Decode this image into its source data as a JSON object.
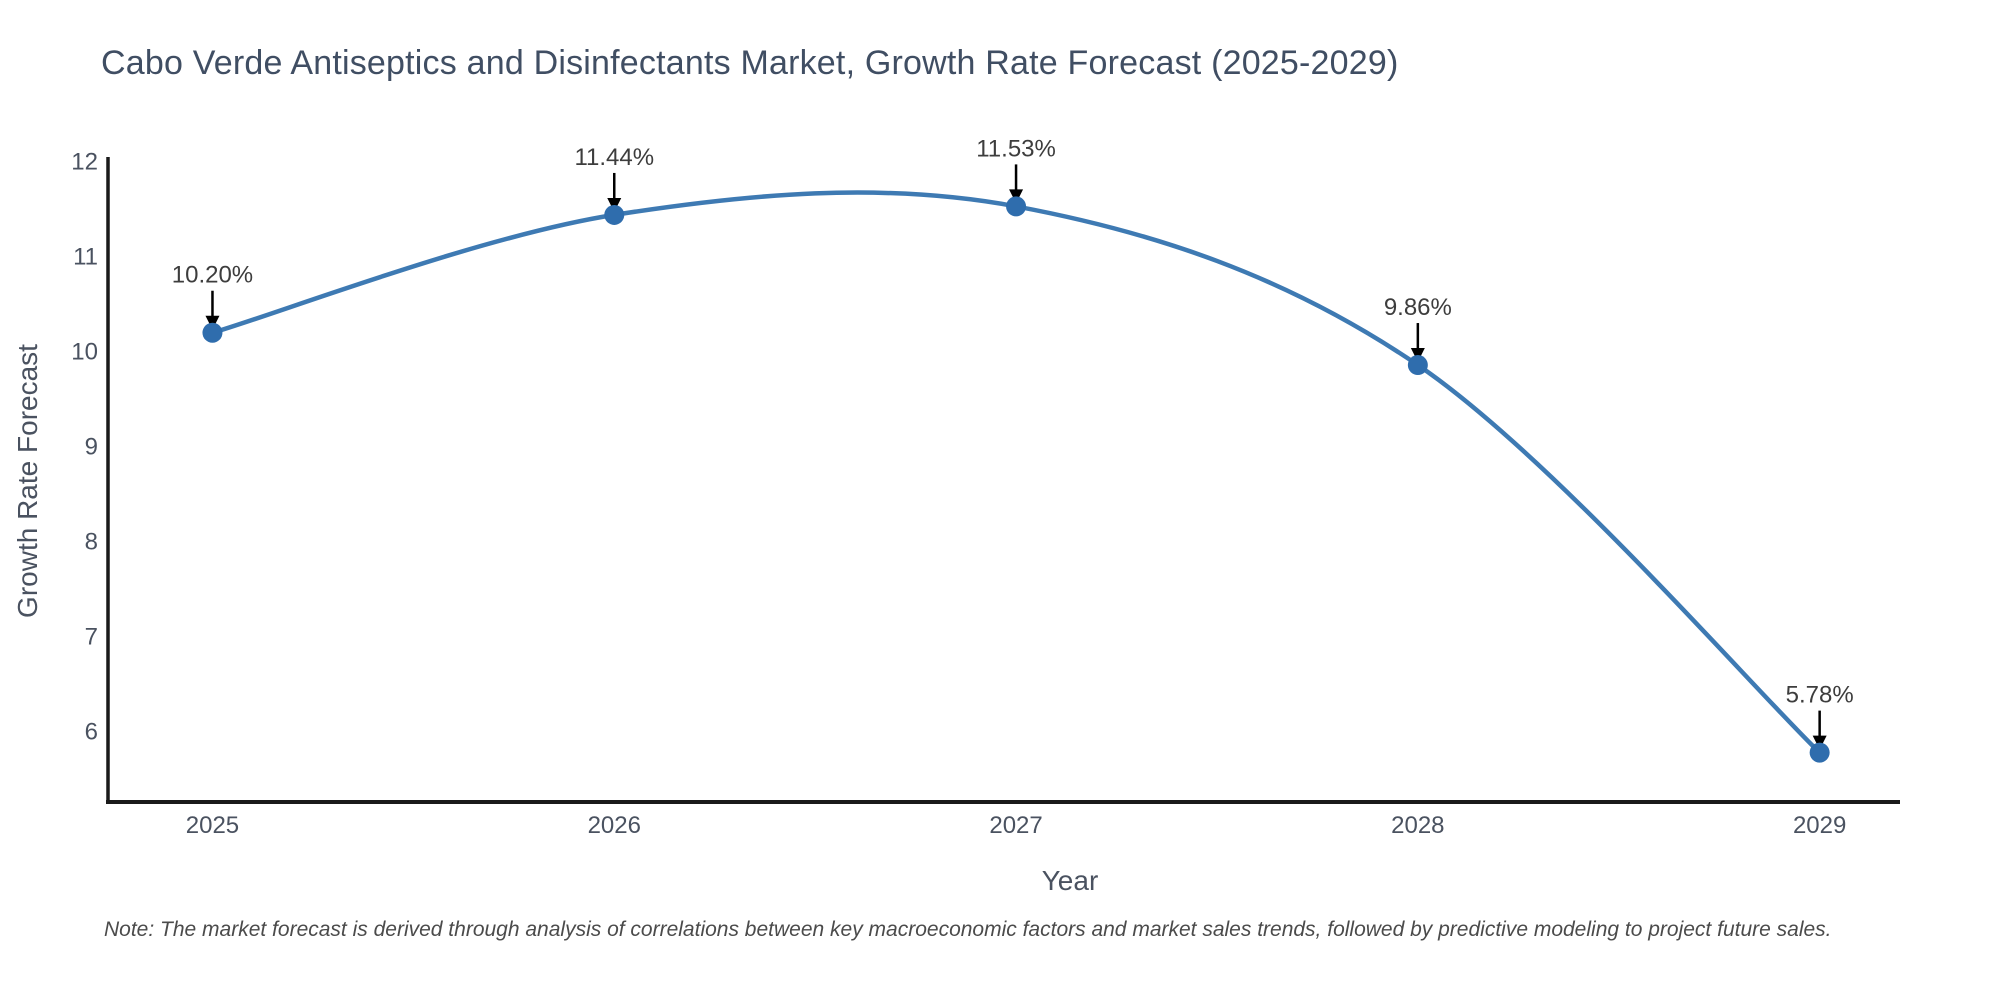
{
  "figure": {
    "title": "Cabo Verde Antiseptics and Disinfectants Market, Growth Rate Forecast (2025-2029)",
    "note": "Note: The market forecast is derived through analysis of correlations between key macroeconomic factors and market sales trends, followed by predictive modeling to project future sales."
  },
  "chart_data": {
    "type": "line",
    "title": "Cabo Verde Antiseptics and Disinfectants Market, Growth Rate Forecast (2025-2029)",
    "x": [
      2025,
      2026,
      2027,
      2028,
      2029
    ],
    "values": [
      10.2,
      11.44,
      11.53,
      9.86,
      5.78
    ],
    "point_labels": [
      "10.20%",
      "11.44%",
      "11.53%",
      "9.86%",
      "5.78%"
    ],
    "xlabel": "Year",
    "ylabel": "Growth Rate Forecast",
    "yticks": [
      6,
      7,
      8,
      9,
      10,
      11,
      12
    ],
    "xticks": [
      "2025",
      "2026",
      "2027",
      "2028",
      "2029"
    ],
    "ylim": [
      5.26,
      12.05
    ],
    "xlim": [
      2024.74,
      2029.2
    ],
    "line_shape": "spline",
    "grid": false,
    "legend": "none",
    "note": "Note: The market forecast is derived through analysis of correlations between key macroeconomic factors and market sales trends, followed by predictive modeling to project future sales.",
    "colors": {
      "line": "#3e7ab3",
      "marker": "#2f6dad",
      "axis": "#1a1a1a",
      "tick_text": "#4a5260",
      "title_text": "#404e63",
      "annotation_text": "#3d3d3d",
      "arrow": "#000000",
      "note_text": "#4b4b4b",
      "background": "#ffffff"
    }
  }
}
